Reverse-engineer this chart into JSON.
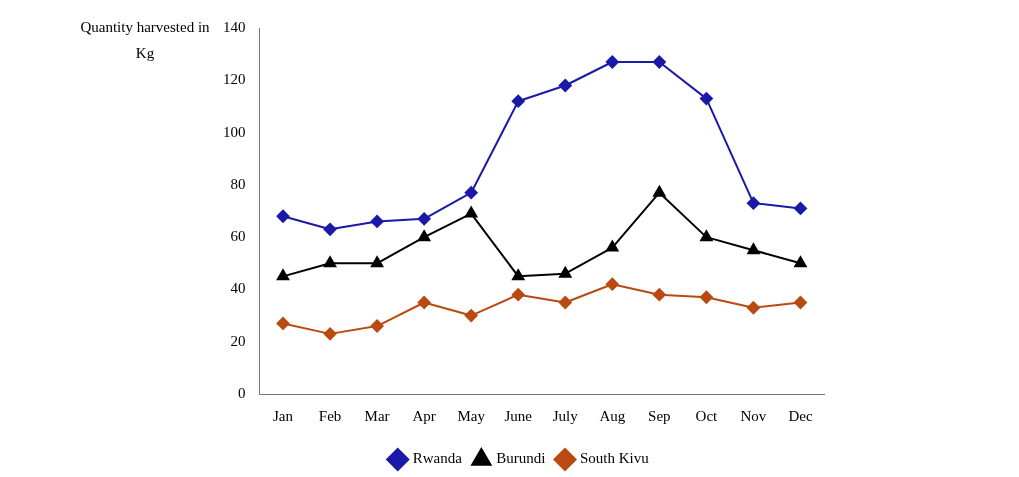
{
  "chart_data": {
    "type": "line",
    "ylabel": "Quantity harvested in Kg",
    "categories": [
      "Jan",
      "Feb",
      "Mar",
      "Apr",
      "May",
      "June",
      "July",
      "Aug",
      "Sep",
      "Oct",
      "Nov",
      "Dec"
    ],
    "series": [
      {
        "name": "Rwanda",
        "color": "#1a1aa6",
        "marker": "diamond",
        "values": [
          68,
          63,
          66,
          67,
          77,
          112,
          118,
          127,
          127,
          113,
          73,
          71
        ]
      },
      {
        "name": "Burundi",
        "color": "#000000",
        "marker": "triangle",
        "values": [
          45,
          50,
          50,
          60,
          69,
          45,
          46,
          56,
          77,
          60,
          55,
          50
        ]
      },
      {
        "name": "South Kivu",
        "color": "#b84a12",
        "marker": "diamond",
        "values": [
          27,
          23,
          26,
          35,
          30,
          38,
          35,
          42,
          38,
          37,
          33,
          35
        ]
      }
    ],
    "ylim": [
      0,
      140
    ],
    "yticks": [
      0,
      20,
      40,
      60,
      80,
      100,
      120,
      140
    ],
    "grid": false,
    "legend": "bottom",
    "line_style": "solid"
  }
}
